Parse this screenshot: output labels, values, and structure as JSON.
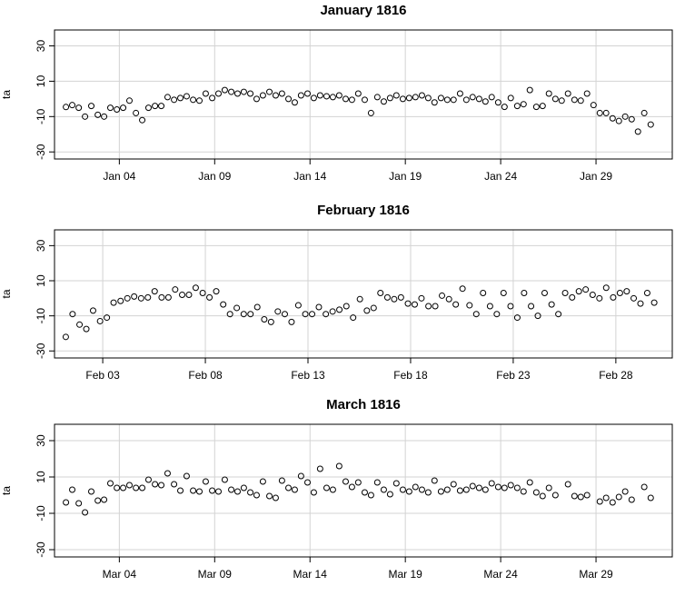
{
  "chart_data": [
    {
      "type": "scatter",
      "title": "January 1816",
      "ylabel": "ta",
      "color": "#000000",
      "grid": true,
      "x": [
        1.2,
        1.53,
        1.87,
        2.2,
        2.53,
        2.87,
        3.2,
        3.53,
        3.87,
        4.2,
        4.53,
        4.87,
        5.2,
        5.53,
        5.87,
        6.2,
        6.53,
        6.87,
        7.2,
        7.53,
        7.87,
        8.2,
        8.53,
        8.87,
        9.2,
        9.53,
        9.87,
        10.2,
        10.53,
        10.87,
        11.2,
        11.53,
        11.87,
        12.2,
        12.53,
        12.87,
        13.2,
        13.53,
        13.87,
        14.2,
        14.53,
        14.87,
        15.2,
        15.53,
        15.87,
        16.2,
        16.53,
        16.87,
        17.2,
        17.53,
        17.87,
        18.2,
        18.53,
        18.87,
        19.2,
        19.53,
        19.87,
        20.2,
        20.53,
        20.87,
        21.2,
        21.53,
        21.87,
        22.2,
        22.53,
        22.87,
        23.2,
        23.53,
        23.87,
        24.2,
        24.53,
        24.87,
        25.2,
        25.53,
        25.87,
        26.2,
        26.53,
        26.87,
        27.2,
        27.53,
        27.87,
        28.2,
        28.53,
        28.87,
        29.2,
        29.53,
        29.87,
        30.2,
        30.53,
        30.87,
        31.2,
        31.53,
        31.87
      ],
      "values": [
        -4.6,
        -3.5,
        -5,
        -10,
        -4,
        -9,
        -10,
        -5,
        -6,
        -5,
        -1,
        -8,
        -12,
        -5,
        -4,
        -4,
        1,
        -0.5,
        0.5,
        1.5,
        -0.5,
        -1,
        3,
        0.5,
        3,
        5,
        4,
        3,
        4,
        3,
        0,
        2,
        4,
        2,
        3,
        0,
        -2,
        2,
        3,
        0.5,
        2,
        1.5,
        1,
        2,
        0,
        -0.5,
        3,
        -0.5,
        -8,
        1,
        -1.5,
        0.5,
        2,
        0,
        0.5,
        1,
        2,
        0.5,
        -2,
        0.5,
        -0.5,
        -0.5,
        3,
        -0.5,
        1,
        0,
        -1.5,
        1,
        -2,
        -4.5,
        0.5,
        -4,
        -3,
        5,
        -4.5,
        -4,
        3,
        0,
        -1,
        3,
        -0.5,
        -1,
        3,
        -3.5,
        -8,
        -8,
        -11,
        -12.5,
        -10,
        -11.5,
        -18.5,
        -8,
        -14.5
      ],
      "xlim": [
        0.6,
        33
      ],
      "xticks": [
        {
          "value": 4,
          "label": "Jan 04"
        },
        {
          "value": 9,
          "label": "Jan 09"
        },
        {
          "value": 14,
          "label": "Jan 14"
        },
        {
          "value": 19,
          "label": "Jan 19"
        },
        {
          "value": 24,
          "label": "Jan 24"
        },
        {
          "value": 29,
          "label": "Jan 29"
        }
      ],
      "ylim": [
        -34,
        39
      ],
      "yticks": [
        -30,
        -10,
        10,
        30
      ]
    },
    {
      "type": "scatter",
      "title": "February 1816",
      "ylabel": "ta",
      "color": "#000000",
      "grid": true,
      "x": [
        1.2,
        1.53,
        1.87,
        2.2,
        2.53,
        2.87,
        3.2,
        3.53,
        3.87,
        4.2,
        4.53,
        4.87,
        5.2,
        5.53,
        5.87,
        6.2,
        6.53,
        6.87,
        7.2,
        7.53,
        7.87,
        8.2,
        8.53,
        8.87,
        9.2,
        9.53,
        9.87,
        10.2,
        10.53,
        10.87,
        11.2,
        11.53,
        11.87,
        12.2,
        12.53,
        12.87,
        13.2,
        13.53,
        13.87,
        14.2,
        14.53,
        14.87,
        15.2,
        15.53,
        15.87,
        16.2,
        16.53,
        16.87,
        17.2,
        17.53,
        17.87,
        18.2,
        18.53,
        18.87,
        19.2,
        19.53,
        19.87,
        20.2,
        20.53,
        20.87,
        21.2,
        21.53,
        21.87,
        22.2,
        22.53,
        22.87,
        23.2,
        23.53,
        23.87,
        24.2,
        24.53,
        24.87,
        25.2,
        25.53,
        25.87,
        26.2,
        26.53,
        26.87,
        27.2,
        27.53,
        27.87,
        28.2,
        28.53,
        28.87,
        29.2,
        29.53,
        29.87
      ],
      "values": [
        -22,
        -9,
        -15,
        -17.5,
        -7,
        -13,
        -11,
        -2.5,
        -1.5,
        0,
        1,
        0,
        0.5,
        4,
        0.5,
        0.5,
        5,
        2,
        2,
        6,
        3,
        0.5,
        4,
        -3.5,
        -9,
        -5.5,
        -9,
        -9,
        -5,
        -12,
        -13.5,
        -7.5,
        -9,
        -13.5,
        -4,
        -9,
        -9,
        -5,
        -9,
        -7.5,
        -6.5,
        -4.5,
        -11,
        -0.5,
        -7,
        -5.5,
        3,
        0.5,
        -0.5,
        0.5,
        -3,
        -3.5,
        0,
        -4.5,
        -4.5,
        1.5,
        -0.5,
        -3.5,
        5.5,
        -4,
        -9,
        3,
        -4.5,
        -9,
        3,
        -4.5,
        -11,
        3,
        -4.5,
        -10,
        3,
        -3.5,
        -9,
        3,
        0.5,
        4,
        5,
        2,
        0,
        6,
        0.5,
        3,
        4,
        0,
        -3,
        3,
        -2.5
      ],
      "xlim": [
        0.65,
        30.75
      ],
      "xticks": [
        {
          "value": 3,
          "label": "Feb 03"
        },
        {
          "value": 8,
          "label": "Feb 08"
        },
        {
          "value": 13,
          "label": "Feb 13"
        },
        {
          "value": 18,
          "label": "Feb 18"
        },
        {
          "value": 23,
          "label": "Feb 23"
        },
        {
          "value": 28,
          "label": "Feb 28"
        }
      ],
      "ylim": [
        -34,
        39
      ],
      "yticks": [
        -30,
        -10,
        10,
        30
      ]
    },
    {
      "type": "scatter",
      "title": "March 1816",
      "ylabel": "ta",
      "color": "#000000",
      "grid": true,
      "x": [
        1.2,
        1.53,
        1.87,
        2.2,
        2.53,
        2.87,
        3.2,
        3.53,
        3.87,
        4.2,
        4.53,
        4.87,
        5.2,
        5.53,
        5.87,
        6.2,
        6.53,
        6.87,
        7.2,
        7.53,
        7.87,
        8.2,
        8.53,
        8.87,
        9.2,
        9.53,
        9.87,
        10.2,
        10.53,
        10.87,
        11.2,
        11.53,
        11.87,
        12.2,
        12.53,
        12.87,
        13.2,
        13.53,
        13.87,
        14.2,
        14.53,
        14.87,
        15.2,
        15.53,
        15.87,
        16.2,
        16.53,
        16.87,
        17.2,
        17.53,
        17.87,
        18.2,
        18.53,
        18.87,
        19.2,
        19.53,
        19.87,
        20.2,
        20.53,
        20.87,
        21.2,
        21.53,
        21.87,
        22.2,
        22.53,
        22.87,
        23.2,
        23.53,
        23.87,
        24.2,
        24.53,
        24.87,
        25.2,
        25.53,
        25.87,
        26.2,
        26.53,
        26.87,
        27.2,
        27.53,
        27.87,
        28.2,
        28.53,
        28.87,
        29.2,
        29.53,
        29.87,
        30.2,
        30.53,
        30.87,
        31.2,
        31.53,
        31.87
      ],
      "values": [
        -4,
        3,
        -4.5,
        -9.5,
        2,
        -3,
        -2.5,
        6.5,
        4,
        4,
        5.5,
        4,
        4,
        8.5,
        6,
        5.5,
        12,
        6,
        2.5,
        10.5,
        2.5,
        2,
        7.5,
        2.5,
        2,
        8.5,
        3,
        2,
        4,
        1.5,
        0,
        7.5,
        -0.5,
        -1.5,
        8,
        4,
        3,
        10.5,
        7,
        1.5,
        14.5,
        4,
        3,
        16,
        7.5,
        4.5,
        7,
        1.5,
        0,
        7,
        3,
        0.5,
        6.5,
        3,
        2,
        4.5,
        3,
        1.5,
        8,
        2,
        3,
        6,
        2.5,
        3,
        5,
        4,
        3,
        6.5,
        4.5,
        4,
        5.5,
        4,
        2,
        7,
        1.5,
        -0.5,
        4,
        0,
        null,
        6,
        -0.5,
        -1,
        0,
        null,
        -3.5,
        -1.5,
        -4,
        -1,
        2,
        -2.5,
        null,
        4.5,
        -1.5
      ],
      "xlim": [
        0.6,
        33
      ],
      "xticks": [
        {
          "value": 4,
          "label": "Mar 04"
        },
        {
          "value": 9,
          "label": "Mar 09"
        },
        {
          "value": 14,
          "label": "Mar 14"
        },
        {
          "value": 19,
          "label": "Mar 19"
        },
        {
          "value": 24,
          "label": "Mar 24"
        },
        {
          "value": 29,
          "label": "Mar 29"
        }
      ],
      "ylim": [
        -34,
        39
      ],
      "yticks": [
        -30,
        -10,
        10,
        30
      ]
    }
  ]
}
